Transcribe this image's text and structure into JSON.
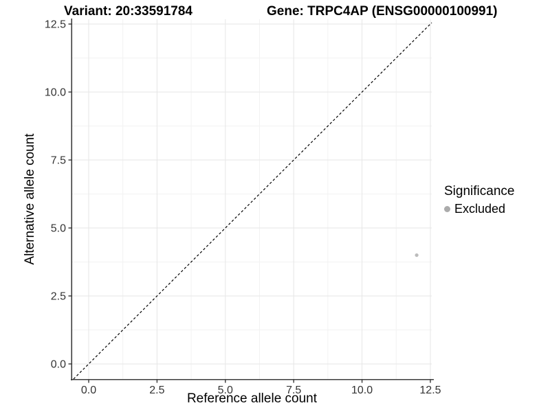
{
  "title": {
    "left": "Variant: 20:33591784",
    "right": "Gene: TRPC4AP (ENSG00000100991)"
  },
  "chart_data": {
    "type": "scatter",
    "xlabel": "Reference allele count",
    "ylabel": "Alternative allele count",
    "xlim": [
      -0.604,
      12.551
    ],
    "ylim": [
      -0.556,
      12.677
    ],
    "xticks": {
      "values": [
        0,
        2.5,
        5,
        7.5,
        10,
        12.5
      ],
      "labels": [
        "0.0",
        "2.5",
        "5.0",
        "7.5",
        "10.0",
        "12.5"
      ]
    },
    "yticks": {
      "values": [
        0,
        2.5,
        5,
        7.5,
        10,
        12.5
      ],
      "labels": [
        "0.0",
        "2.5",
        "5.0",
        "7.5",
        "10.0",
        "12.5"
      ]
    },
    "minor_xticks": [
      1.25,
      3.75,
      6.25,
      8.75,
      11.25
    ],
    "minor_yticks": [
      1.25,
      3.75,
      6.25,
      8.75,
      11.25
    ],
    "grid": true,
    "identity_line": {
      "style": "dashed",
      "color": "#000000"
    },
    "series": [
      {
        "name": "Excluded",
        "color": "#bcbcbc",
        "points": [
          {
            "x": 12,
            "y": 4
          }
        ]
      }
    ],
    "legend": {
      "title": "Significance",
      "position": "right",
      "items": [
        {
          "label": "Excluded",
          "color": "#ababab"
        }
      ]
    }
  },
  "colors": {
    "background": "#ffffff",
    "grid_major": "#e6e6e6",
    "grid_minor": "#f2f2f2",
    "axis_line": "#3c3c3c",
    "tick_mark": "#333333",
    "tick_label": "#333333"
  }
}
